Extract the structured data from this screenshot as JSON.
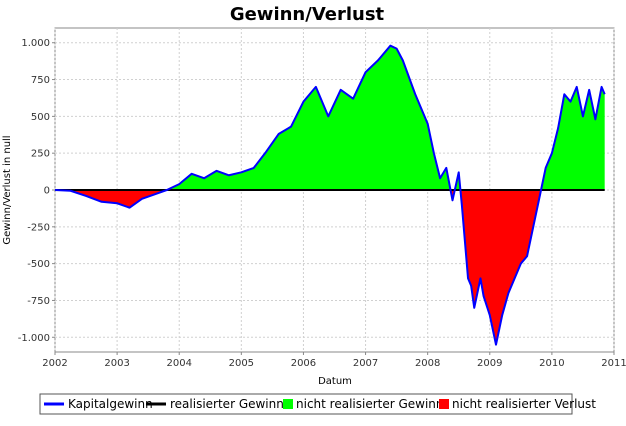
{
  "chart_data": {
    "type": "area",
    "title": "Gewinn/Verlust",
    "xlabel": "Datum",
    "ylabel": "Gewinn/Verlust in null",
    "xlim": [
      2002.0,
      2011.0
    ],
    "ylim": [
      -1100,
      1100
    ],
    "x_ticks": [
      "2002",
      "2003",
      "2004",
      "2005",
      "2006",
      "2007",
      "2008",
      "2009",
      "2010",
      "2011"
    ],
    "y_ticks": [
      {
        "value": 1000,
        "label": "1.000"
      },
      {
        "value": 750,
        "label": "750"
      },
      {
        "value": 500,
        "label": "500"
      },
      {
        "value": 250,
        "label": "250"
      },
      {
        "value": 0,
        "label": "0"
      },
      {
        "value": -250,
        "label": "-250"
      },
      {
        "value": -500,
        "label": "-500"
      },
      {
        "value": -750,
        "label": "-750"
      },
      {
        "value": -1000,
        "label": "-1.000"
      }
    ],
    "grid": true,
    "legend_position": "bottom",
    "series": [
      {
        "name": "Kapitalgewinn",
        "color": "#0000ff",
        "x": [
          2002.0,
          2002.25,
          2002.5,
          2002.75,
          2003.0,
          2003.2,
          2003.4,
          2003.6,
          2003.8,
          2004.0,
          2004.2,
          2004.4,
          2004.6,
          2004.8,
          2005.0,
          2005.2,
          2005.4,
          2005.6,
          2005.8,
          2006.0,
          2006.2,
          2006.4,
          2006.6,
          2006.8,
          2007.0,
          2007.2,
          2007.4,
          2007.5,
          2007.6,
          2007.8,
          2008.0,
          2008.1,
          2008.2,
          2008.3,
          2008.4,
          2008.5,
          2008.55,
          2008.6,
          2008.65,
          2008.7,
          2008.75,
          2008.8,
          2008.85,
          2008.9,
          2009.0,
          2009.1,
          2009.2,
          2009.3,
          2009.4,
          2009.5,
          2009.6,
          2009.7,
          2009.8,
          2009.9,
          2010.0,
          2010.1,
          2010.2,
          2010.3,
          2010.4,
          2010.5,
          2010.6,
          2010.7,
          2010.8,
          2010.85
        ],
        "values": [
          0,
          -5,
          -40,
          -80,
          -90,
          -120,
          -60,
          -30,
          0,
          40,
          110,
          80,
          130,
          100,
          120,
          150,
          260,
          380,
          430,
          600,
          700,
          500,
          680,
          620,
          800,
          880,
          980,
          960,
          880,
          650,
          450,
          250,
          80,
          150,
          -70,
          120,
          -100,
          -350,
          -600,
          -650,
          -800,
          -700,
          -600,
          -720,
          -850,
          -1050,
          -850,
          -700,
          -600,
          -500,
          -450,
          -250,
          -50,
          150,
          250,
          420,
          650,
          600,
          700,
          500,
          680,
          480,
          700,
          650
        ]
      },
      {
        "name": "realisierter Gewinn",
        "color": "#000000",
        "x": [
          2002.0,
          2010.85
        ],
        "values": [
          0,
          0
        ]
      },
      {
        "name": "nicht realisierter Gewinn",
        "color": "#00ff00"
      },
      {
        "name": "nicht realisierter Verlust",
        "color": "#ff0000"
      }
    ]
  }
}
